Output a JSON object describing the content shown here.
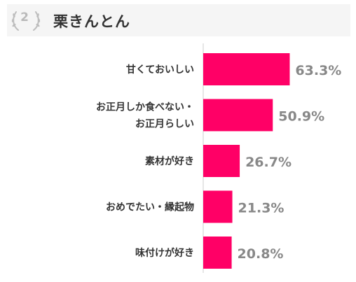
{
  "header": {
    "rank": "2",
    "title": "栗きんとん"
  },
  "colors": {
    "bar": "#ff0066",
    "label_text": "#333333",
    "value_text": "#888888",
    "axis_line": "#cccccc",
    "header_bg": "#f5f5f5",
    "laurel": "#bdbdbd"
  },
  "chart_data": {
    "type": "bar",
    "orientation": "horizontal",
    "categories": [
      [
        "甘くておいしい"
      ],
      [
        "お正月しか食べない・",
        "お正月らしい"
      ],
      [
        "素材が好き"
      ],
      [
        "おめでたい・縁起物"
      ],
      [
        "味付けが好き"
      ]
    ],
    "values": [
      63.3,
      50.9,
      26.7,
      21.3,
      20.8
    ],
    "value_labels": [
      "63.3%",
      "50.9%",
      "26.7%",
      "21.3%",
      "20.8%"
    ],
    "unit": "%",
    "grid": false,
    "legend": "none"
  }
}
